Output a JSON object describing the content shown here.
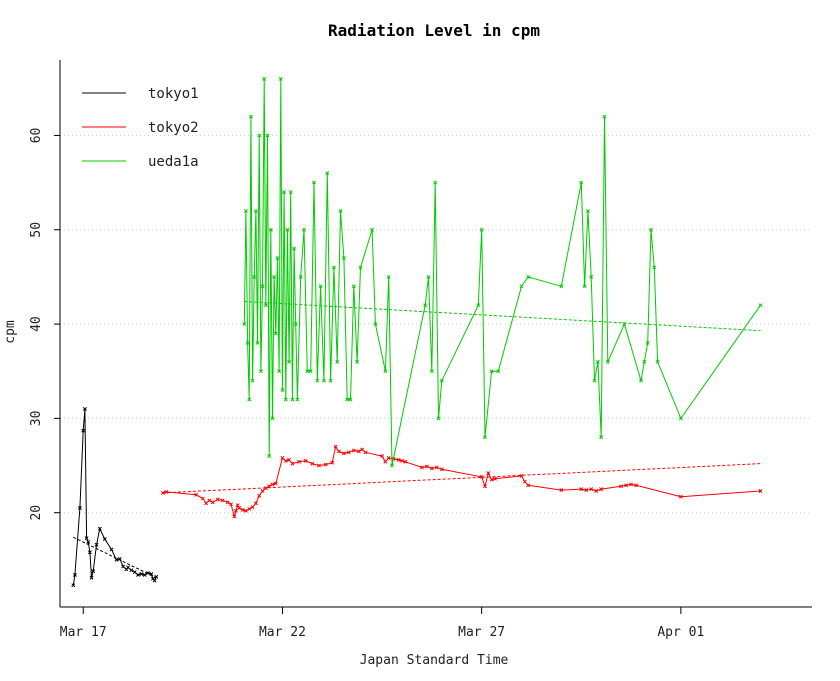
{
  "chart_data": {
    "type": "line",
    "title": "Radiation Level in cpm",
    "xlabel": "Japan Standard Time",
    "ylabel": "cpm",
    "ylim": [
      10,
      68
    ],
    "xlim": [
      "2011-03-16T10:00",
      "2011-04-04T07:00"
    ],
    "x_ticks": [
      {
        "date": "2011-03-17",
        "label": "Mar 17"
      },
      {
        "date": "2011-03-22",
        "label": "Mar 22"
      },
      {
        "date": "2011-03-27",
        "label": "Mar 27"
      },
      {
        "date": "2011-04-01",
        "label": "Apr 01"
      }
    ],
    "y_ticks": [
      20,
      30,
      40,
      50,
      60
    ],
    "grid": "horizontal-dotted",
    "legend": "top-left",
    "series": [
      {
        "name": "tokyo1",
        "color": "#000000",
        "points": [
          [
            "2011-03-16T18:00",
            12.3
          ],
          [
            "2011-03-16T19:00",
            13.4
          ],
          [
            "2011-03-16T22:00",
            20.5
          ],
          [
            "2011-03-17T00:00",
            28.7
          ],
          [
            "2011-03-17T01:00",
            31.0
          ],
          [
            "2011-03-17T02:00",
            17.3
          ],
          [
            "2011-03-17T03:00",
            16.9
          ],
          [
            "2011-03-17T04:00",
            15.8
          ],
          [
            "2011-03-17T05:00",
            13.1
          ],
          [
            "2011-03-17T06:00",
            13.8
          ],
          [
            "2011-03-17T08:00",
            16.6
          ],
          [
            "2011-03-17T10:00",
            18.3
          ],
          [
            "2011-03-17T13:00",
            17.2
          ],
          [
            "2011-03-17T17:00",
            16.1
          ],
          [
            "2011-03-17T20:00",
            15.0
          ],
          [
            "2011-03-17T22:00",
            15.1
          ],
          [
            "2011-03-18T00:00",
            14.3
          ],
          [
            "2011-03-18T02:00",
            14.0
          ],
          [
            "2011-03-18T03:00",
            14.2
          ],
          [
            "2011-03-18T05:00",
            13.9
          ],
          [
            "2011-03-18T07:00",
            13.7
          ],
          [
            "2011-03-18T09:00",
            13.4
          ],
          [
            "2011-03-18T11:00",
            13.5
          ],
          [
            "2011-03-18T13:00",
            13.4
          ],
          [
            "2011-03-18T15:00",
            13.6
          ],
          [
            "2011-03-18T17:00",
            13.5
          ],
          [
            "2011-03-18T18:00",
            13.0
          ],
          [
            "2011-03-18T19:00",
            12.8
          ],
          [
            "2011-03-18T20:00",
            13.2
          ]
        ],
        "trend": [
          [
            "2011-03-16T18:00",
            17.4
          ],
          [
            "2011-03-18T20:00",
            13.1
          ]
        ]
      },
      {
        "name": "tokyo2",
        "color": "#ff0000",
        "points": [
          [
            "2011-03-19T00:00",
            22.1
          ],
          [
            "2011-03-19T02:00",
            22.2
          ],
          [
            "2011-03-19T20:00",
            21.9
          ],
          [
            "2011-03-20T00:00",
            21.5
          ],
          [
            "2011-03-20T02:00",
            21.0
          ],
          [
            "2011-03-20T04:00",
            21.3
          ],
          [
            "2011-03-20T06:00",
            21.1
          ],
          [
            "2011-03-20T09:00",
            21.4
          ],
          [
            "2011-03-20T12:00",
            21.3
          ],
          [
            "2011-03-20T15:00",
            21.1
          ],
          [
            "2011-03-20T17:00",
            20.9
          ],
          [
            "2011-03-20T19:00",
            19.6
          ],
          [
            "2011-03-20T20:00",
            20.2
          ],
          [
            "2011-03-20T21:00",
            20.8
          ],
          [
            "2011-03-20T22:00",
            20.5
          ],
          [
            "2011-03-21T00:00",
            20.3
          ],
          [
            "2011-03-21T02:00",
            20.2
          ],
          [
            "2011-03-21T04:00",
            20.4
          ],
          [
            "2011-03-21T06:00",
            20.6
          ],
          [
            "2011-03-21T08:00",
            21.0
          ],
          [
            "2011-03-21T10:00",
            21.8
          ],
          [
            "2011-03-21T12:00",
            22.3
          ],
          [
            "2011-03-21T14:00",
            22.6
          ],
          [
            "2011-03-21T16:00",
            22.8
          ],
          [
            "2011-03-21T18:00",
            23.0
          ],
          [
            "2011-03-21T20:00",
            23.1
          ],
          [
            "2011-03-22T00:00",
            25.8
          ],
          [
            "2011-03-22T02:00",
            25.5
          ],
          [
            "2011-03-22T04:00",
            25.6
          ],
          [
            "2011-03-22T06:00",
            25.2
          ],
          [
            "2011-03-22T10:00",
            25.4
          ],
          [
            "2011-03-22T14:00",
            25.5
          ],
          [
            "2011-03-22T18:00",
            25.2
          ],
          [
            "2011-03-22T22:00",
            25.0
          ],
          [
            "2011-03-23T02:00",
            25.1
          ],
          [
            "2011-03-23T06:00",
            25.3
          ],
          [
            "2011-03-23T08:00",
            27.0
          ],
          [
            "2011-03-23T10:00",
            26.5
          ],
          [
            "2011-03-23T13:00",
            26.3
          ],
          [
            "2011-03-23T16:00",
            26.4
          ],
          [
            "2011-03-23T19:00",
            26.6
          ],
          [
            "2011-03-23T22:00",
            26.5
          ],
          [
            "2011-03-24T00:00",
            26.7
          ],
          [
            "2011-03-24T02:00",
            26.4
          ],
          [
            "2011-03-24T12:00",
            26.0
          ],
          [
            "2011-03-24T14:00",
            25.4
          ],
          [
            "2011-03-24T16:00",
            25.8
          ],
          [
            "2011-03-24T19:00",
            25.7
          ],
          [
            "2011-03-24T22:00",
            25.6
          ],
          [
            "2011-03-25T00:00",
            25.5
          ],
          [
            "2011-03-25T02:00",
            25.4
          ],
          [
            "2011-03-25T12:00",
            24.8
          ],
          [
            "2011-03-25T15:00",
            24.9
          ],
          [
            "2011-03-25T18:00",
            24.7
          ],
          [
            "2011-03-25T21:00",
            24.8
          ],
          [
            "2011-03-26T00:00",
            24.6
          ],
          [
            "2011-03-27T00:00",
            23.8
          ],
          [
            "2011-03-27T02:00",
            22.8
          ],
          [
            "2011-03-27T04:00",
            24.2
          ],
          [
            "2011-03-27T06:00",
            23.5
          ],
          [
            "2011-03-27T08:00",
            23.6
          ],
          [
            "2011-03-28T00:00",
            23.9
          ],
          [
            "2011-03-28T02:00",
            23.3
          ],
          [
            "2011-03-28T04:00",
            22.9
          ],
          [
            "2011-03-29T00:00",
            22.4
          ],
          [
            "2011-03-29T12:00",
            22.5
          ],
          [
            "2011-03-29T15:00",
            22.4
          ],
          [
            "2011-03-29T18:00",
            22.5
          ],
          [
            "2011-03-29T21:00",
            22.3
          ],
          [
            "2011-03-30T00:00",
            22.5
          ],
          [
            "2011-03-30T12:00",
            22.8
          ],
          [
            "2011-03-30T15:00",
            22.9
          ],
          [
            "2011-03-30T18:00",
            23.0
          ],
          [
            "2011-03-30T21:00",
            22.9
          ],
          [
            "2011-04-01T00:00",
            21.7
          ],
          [
            "2011-04-03T00:00",
            22.3
          ]
        ],
        "trend": [
          [
            "2011-03-19T00:00",
            22.1
          ],
          [
            "2011-04-03T00:00",
            25.2
          ]
        ]
      },
      {
        "name": "ueda1a",
        "color": "#00cc00",
        "points": [
          [
            "2011-03-21T01:00",
            40
          ],
          [
            "2011-03-21T02:00",
            52
          ],
          [
            "2011-03-21T03:00",
            38
          ],
          [
            "2011-03-21T04:00",
            32
          ],
          [
            "2011-03-21T05:00",
            62
          ],
          [
            "2011-03-21T06:00",
            34
          ],
          [
            "2011-03-21T07:00",
            45
          ],
          [
            "2011-03-21T08:00",
            52
          ],
          [
            "2011-03-21T09:00",
            38
          ],
          [
            "2011-03-21T10:00",
            60
          ],
          [
            "2011-03-21T11:00",
            35
          ],
          [
            "2011-03-21T12:00",
            44
          ],
          [
            "2011-03-21T13:00",
            66
          ],
          [
            "2011-03-21T14:00",
            42
          ],
          [
            "2011-03-21T15:00",
            60
          ],
          [
            "2011-03-21T16:00",
            26
          ],
          [
            "2011-03-21T17:00",
            50
          ],
          [
            "2011-03-21T18:00",
            30
          ],
          [
            "2011-03-21T19:00",
            45
          ],
          [
            "2011-03-21T20:00",
            39
          ],
          [
            "2011-03-21T21:00",
            47
          ],
          [
            "2011-03-21T22:00",
            35
          ],
          [
            "2011-03-21T23:00",
            66
          ],
          [
            "2011-03-22T00:00",
            33
          ],
          [
            "2011-03-22T01:00",
            54
          ],
          [
            "2011-03-22T02:00",
            32
          ],
          [
            "2011-03-22T03:00",
            50
          ],
          [
            "2011-03-22T04:00",
            36
          ],
          [
            "2011-03-22T05:00",
            54
          ],
          [
            "2011-03-22T06:00",
            32
          ],
          [
            "2011-03-22T07:00",
            48
          ],
          [
            "2011-03-22T08:00",
            40
          ],
          [
            "2011-03-22T09:00",
            32
          ],
          [
            "2011-03-22T11:00",
            45
          ],
          [
            "2011-03-22T13:00",
            50
          ],
          [
            "2011-03-22T15:00",
            35
          ],
          [
            "2011-03-22T17:00",
            35
          ],
          [
            "2011-03-22T19:00",
            55
          ],
          [
            "2011-03-22T21:00",
            34
          ],
          [
            "2011-03-22T23:00",
            44
          ],
          [
            "2011-03-23T01:00",
            34
          ],
          [
            "2011-03-23T03:00",
            56
          ],
          [
            "2011-03-23T05:00",
            34
          ],
          [
            "2011-03-23T07:00",
            46
          ],
          [
            "2011-03-23T09:00",
            36
          ],
          [
            "2011-03-23T11:00",
            52
          ],
          [
            "2011-03-23T13:00",
            47
          ],
          [
            "2011-03-23T15:00",
            32
          ],
          [
            "2011-03-23T17:00",
            32
          ],
          [
            "2011-03-23T19:00",
            44
          ],
          [
            "2011-03-23T21:00",
            36
          ],
          [
            "2011-03-23T23:00",
            46
          ],
          [
            "2011-03-24T06:00",
            50
          ],
          [
            "2011-03-24T08:00",
            40
          ],
          [
            "2011-03-24T14:00",
            35
          ],
          [
            "2011-03-24T16:00",
            45
          ],
          [
            "2011-03-24T18:00",
            25
          ],
          [
            "2011-03-25T14:00",
            42
          ],
          [
            "2011-03-25T16:00",
            45
          ],
          [
            "2011-03-25T18:00",
            35
          ],
          [
            "2011-03-25T20:00",
            55
          ],
          [
            "2011-03-25T22:00",
            30
          ],
          [
            "2011-03-26T00:00",
            34
          ],
          [
            "2011-03-26T22:00",
            42
          ],
          [
            "2011-03-27T00:00",
            50
          ],
          [
            "2011-03-27T02:00",
            28
          ],
          [
            "2011-03-27T06:00",
            35
          ],
          [
            "2011-03-27T10:00",
            35
          ],
          [
            "2011-03-28T00:00",
            44
          ],
          [
            "2011-03-28T04:00",
            45
          ],
          [
            "2011-03-29T00:00",
            44
          ],
          [
            "2011-03-29T12:00",
            55
          ],
          [
            "2011-03-29T14:00",
            44
          ],
          [
            "2011-03-29T16:00",
            52
          ],
          [
            "2011-03-29T18:00",
            45
          ],
          [
            "2011-03-29T20:00",
            34
          ],
          [
            "2011-03-29T22:00",
            36
          ],
          [
            "2011-03-30T00:00",
            28
          ],
          [
            "2011-03-30T02:00",
            62
          ],
          [
            "2011-03-30T04:00",
            36
          ],
          [
            "2011-03-30T14:00",
            40
          ],
          [
            "2011-03-31T00:00",
            34
          ],
          [
            "2011-03-31T02:00",
            36
          ],
          [
            "2011-03-31T04:00",
            38
          ],
          [
            "2011-03-31T06:00",
            50
          ],
          [
            "2011-03-31T08:00",
            46
          ],
          [
            "2011-03-31T10:00",
            36
          ],
          [
            "2011-04-01T00:00",
            30
          ],
          [
            "2011-04-03T00:00",
            42
          ]
        ],
        "trend": [
          [
            "2011-03-21T01:00",
            42.4
          ],
          [
            "2011-04-03T00:00",
            39.3
          ]
        ]
      }
    ]
  }
}
